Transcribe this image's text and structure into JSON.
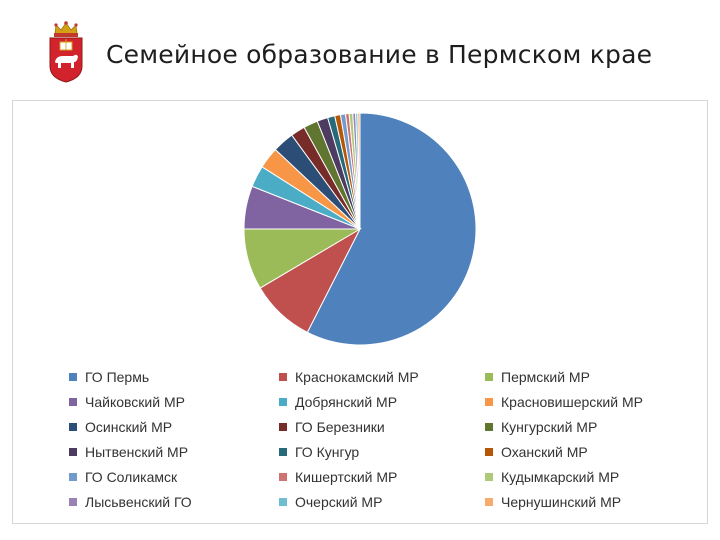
{
  "slide": {
    "title": "Семейное образование в Пермском крае"
  },
  "icons": {
    "header_logo": "perm-krai-coat-of-arms-icon"
  },
  "chart_data": {
    "type": "pie",
    "title": "",
    "legend_position": "bottom",
    "categories": [
      "ГО Пермь",
      "Краснокамский МР",
      "Пермский МР",
      "Чайковский МР",
      "Добрянский МР",
      "Красновишерский МР",
      "Осинский МР",
      "ГО Березники",
      "Кунгурский МР",
      "Нытвенский МР",
      "ГО Кунгур",
      "Оханский МР",
      "ГО Соликамск",
      "Кишертский МР",
      "Кудымкарский МР",
      "Лысьвенский ГО",
      "Очерский МР",
      "Чернушинский МР"
    ],
    "values": [
      57.5,
      9.0,
      8.5,
      6.0,
      3.0,
      3.0,
      3.0,
      2.0,
      2.0,
      1.5,
      1.0,
      0.8,
      0.7,
      0.5,
      0.5,
      0.4,
      0.3,
      0.3
    ],
    "colors": [
      "#4f81bd",
      "#c0504d",
      "#9bbb59",
      "#8064a2",
      "#4bacc6",
      "#f79646",
      "#2c4d75",
      "#772c2a",
      "#5f7530",
      "#4d3b62",
      "#276a7c",
      "#b65708",
      "#729aca",
      "#cd7371",
      "#afc97a",
      "#9983b5",
      "#6fbdd1",
      "#f9ab6b"
    ]
  }
}
